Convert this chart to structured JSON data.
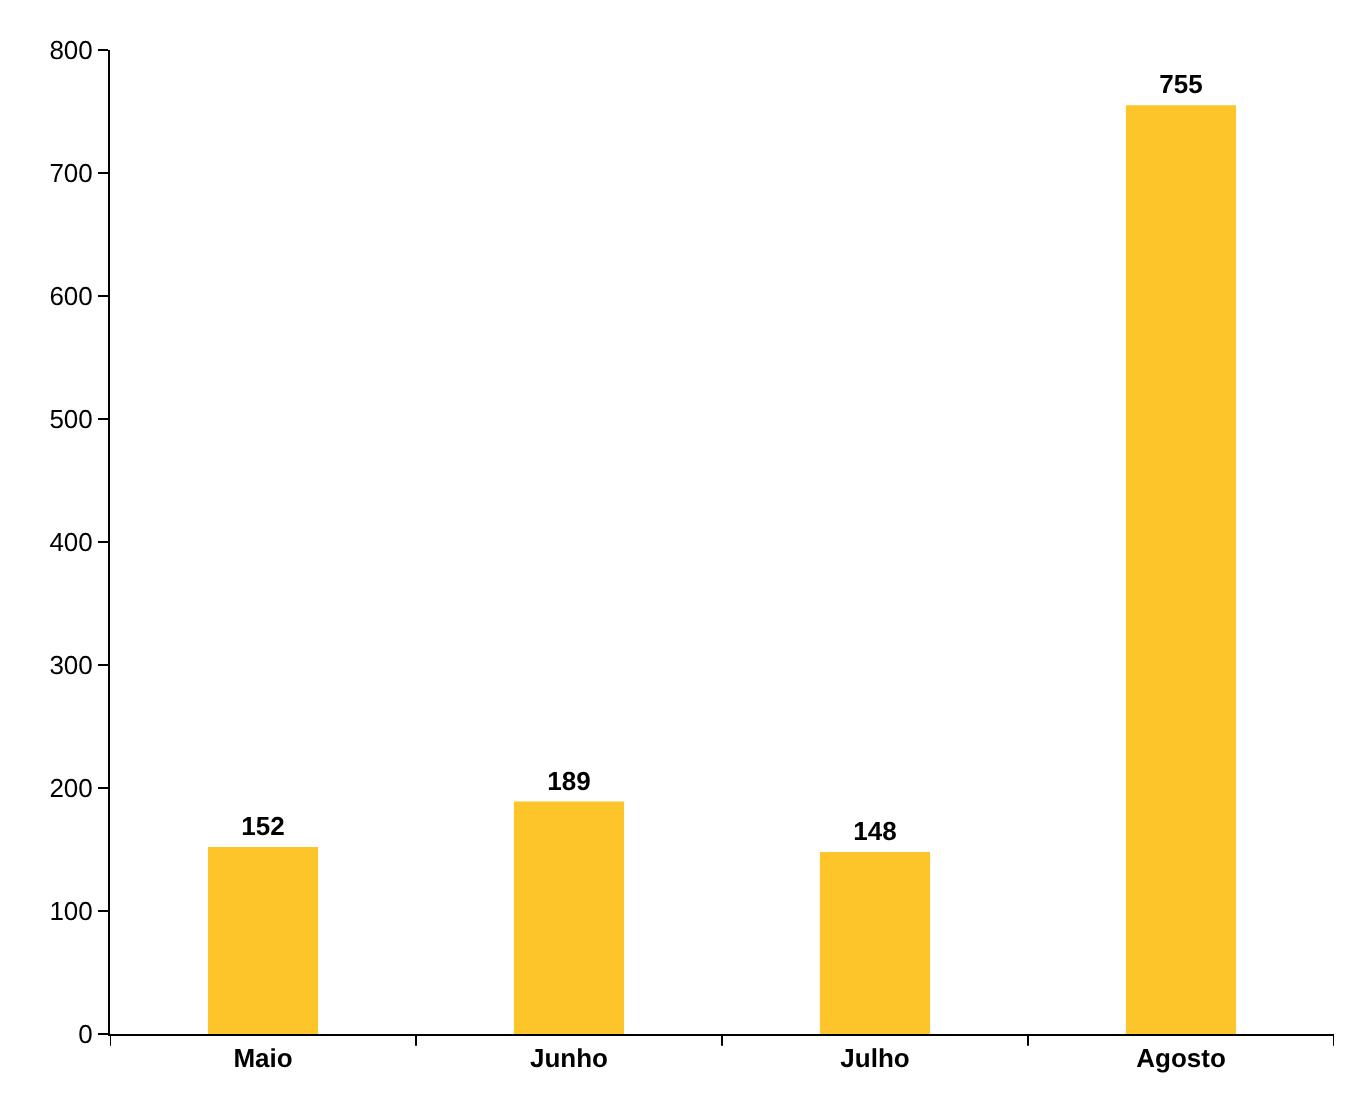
{
  "chart_data": {
    "type": "bar",
    "categories": [
      "Maio",
      "Junho",
      "Julho",
      "Agosto"
    ],
    "values": [
      152,
      189,
      148,
      755
    ],
    "color": "#fdc52a",
    "ylim": [
      0,
      800
    ],
    "yticks": [
      0,
      100,
      200,
      300,
      400,
      500,
      600,
      700,
      800
    ],
    "data_labels": true
  }
}
